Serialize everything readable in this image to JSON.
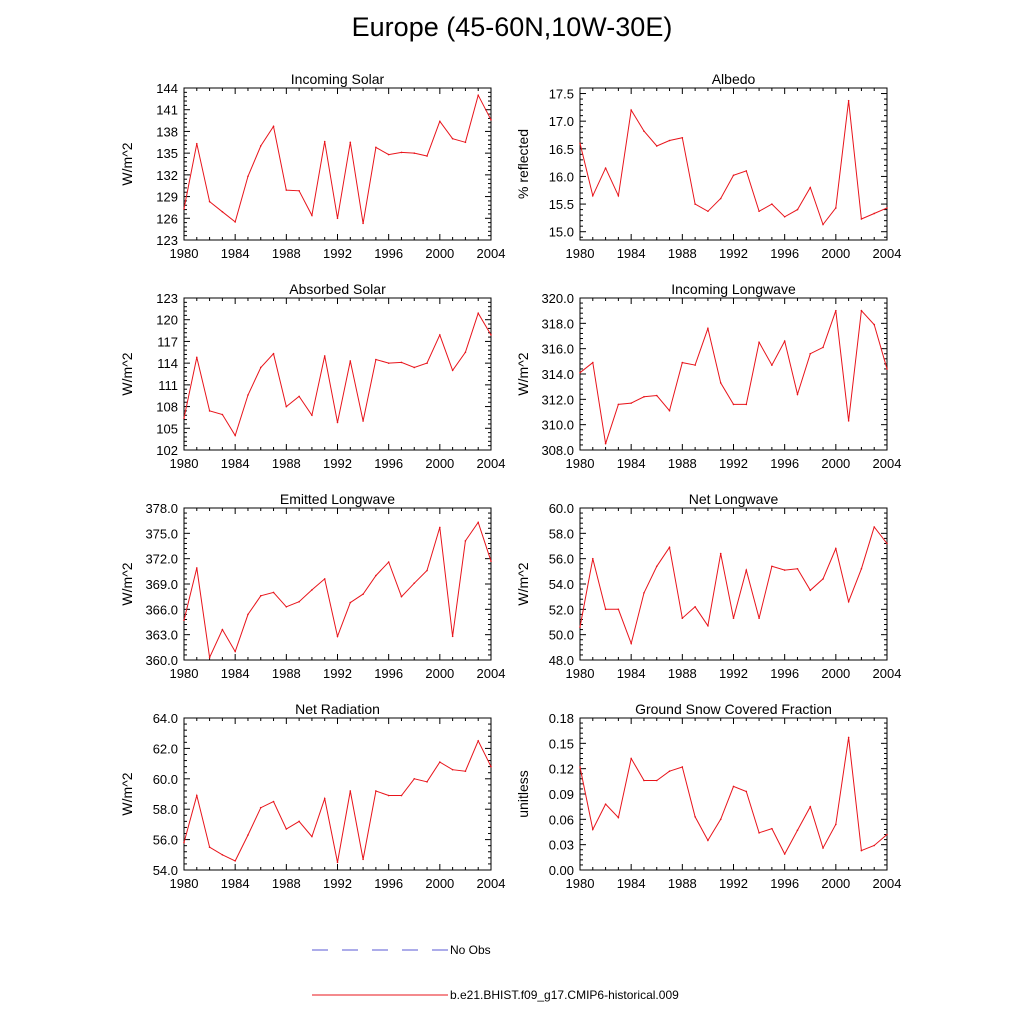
{
  "title": "Europe (45-60N,10W-30E)",
  "colors": {
    "model": "#e8141b",
    "obs": "#5a5ad6",
    "axis": "#000000"
  },
  "legend": {
    "obs_label": "No Obs",
    "model_label": "b.e21.BHIST.f09_g17.CMIP6-historical.009"
  },
  "chart_data": [
    {
      "type": "line",
      "title": "Incoming Solar",
      "xlabel": "",
      "ylabel": "W/m^2",
      "xlim": [
        1980,
        2004
      ],
      "ylim": [
        123,
        144
      ],
      "xticks": [
        "1980",
        "1984",
        "1988",
        "1992",
        "1996",
        "2000",
        "2004"
      ],
      "yticks": [
        "123",
        "126",
        "129",
        "132",
        "135",
        "138",
        "141",
        "144"
      ],
      "x": [
        1980,
        1981,
        1982,
        1983,
        1984,
        1985,
        1986,
        1987,
        1988,
        1989,
        1990,
        1991,
        1992,
        1993,
        1994,
        1995,
        1996,
        1997,
        1998,
        1999,
        2000,
        2001,
        2002,
        2003,
        2004
      ],
      "values": [
        127.3,
        136.3,
        128.3,
        126.9,
        125.5,
        131.8,
        136.0,
        138.7,
        129.9,
        129.8,
        126.4,
        136.6,
        126.0,
        136.5,
        125.3,
        135.8,
        134.8,
        135.1,
        135.0,
        134.6,
        139.4,
        137.0,
        136.5,
        143.0,
        139.6
      ]
    },
    {
      "type": "line",
      "title": "Albedo",
      "xlabel": "",
      "ylabel": "% reflected",
      "xlim": [
        1980,
        2004
      ],
      "ylim": [
        14.85,
        17.6
      ],
      "xticks": [
        "1980",
        "1984",
        "1988",
        "1992",
        "1996",
        "2000",
        "2004"
      ],
      "yticks": [
        "15.0",
        "15.5",
        "16.0",
        "16.5",
        "17.0",
        "17.5"
      ],
      "x": [
        1980,
        1981,
        1982,
        1983,
        1984,
        1985,
        1986,
        1987,
        1988,
        1989,
        1990,
        1991,
        1992,
        1993,
        1994,
        1995,
        1996,
        1997,
        1998,
        1999,
        2000,
        2001,
        2002,
        2003,
        2004
      ],
      "values": [
        16.6,
        15.65,
        16.15,
        15.65,
        17.2,
        16.82,
        16.55,
        16.65,
        16.7,
        15.5,
        15.37,
        15.6,
        16.02,
        16.1,
        15.37,
        15.5,
        15.27,
        15.4,
        15.8,
        15.13,
        15.43,
        17.37,
        15.23,
        15.33,
        15.43
      ]
    },
    {
      "type": "line",
      "title": "Absorbed Solar",
      "xlabel": "",
      "ylabel": "W/m^2",
      "xlim": [
        1980,
        2004
      ],
      "ylim": [
        102,
        123
      ],
      "xticks": [
        "1980",
        "1984",
        "1988",
        "1992",
        "1996",
        "2000",
        "2004"
      ],
      "yticks": [
        "102",
        "105",
        "108",
        "111",
        "114",
        "117",
        "120",
        "123"
      ],
      "x": [
        1980,
        1981,
        1982,
        1983,
        1984,
        1985,
        1986,
        1987,
        1988,
        1989,
        1990,
        1991,
        1992,
        1993,
        1994,
        1995,
        1996,
        1997,
        1998,
        1999,
        2000,
        2001,
        2002,
        2003,
        2004
      ],
      "values": [
        106.4,
        114.8,
        107.4,
        106.9,
        104.0,
        109.6,
        113.4,
        115.3,
        108.0,
        109.4,
        106.8,
        115.0,
        105.8,
        114.3,
        106.0,
        114.5,
        114.0,
        114.1,
        113.4,
        114.0,
        117.9,
        113.0,
        115.5,
        120.9,
        117.9
      ]
    },
    {
      "type": "line",
      "title": "Incoming Longwave",
      "xlabel": "",
      "ylabel": "W/m^2",
      "xlim": [
        1980,
        2004
      ],
      "ylim": [
        308.0,
        320.0
      ],
      "xticks": [
        "1980",
        "1984",
        "1988",
        "1992",
        "1996",
        "2000",
        "2004"
      ],
      "yticks": [
        "308.0",
        "310.0",
        "312.0",
        "314.0",
        "316.0",
        "318.0",
        "320.0"
      ],
      "x": [
        1980,
        1981,
        1982,
        1983,
        1984,
        1985,
        1986,
        1987,
        1988,
        1989,
        1990,
        1991,
        1992,
        1993,
        1994,
        1995,
        1996,
        1997,
        1998,
        1999,
        2000,
        2001,
        2002,
        2003,
        2004
      ],
      "values": [
        314.1,
        314.9,
        308.5,
        311.6,
        311.7,
        312.2,
        312.3,
        311.1,
        314.9,
        314.7,
        317.6,
        313.3,
        311.6,
        311.6,
        316.5,
        314.7,
        316.6,
        312.4,
        315.6,
        316.1,
        319.0,
        310.3,
        319.0,
        317.9,
        314.4
      ]
    },
    {
      "type": "line",
      "title": "Emitted Longwave",
      "xlabel": "",
      "ylabel": "W/m^2",
      "xlim": [
        1980,
        2004
      ],
      "ylim": [
        360.0,
        378.0
      ],
      "xticks": [
        "1980",
        "1984",
        "1988",
        "1992",
        "1996",
        "2000",
        "2004"
      ],
      "yticks": [
        "360.0",
        "363.0",
        "366.0",
        "369.0",
        "372.0",
        "375.0",
        "378.0"
      ],
      "x": [
        1980,
        1981,
        1982,
        1983,
        1984,
        1985,
        1986,
        1987,
        1988,
        1989,
        1990,
        1991,
        1992,
        1993,
        1994,
        1995,
        1996,
        1997,
        1998,
        1999,
        2000,
        2001,
        2002,
        2003,
        2004
      ],
      "values": [
        364.7,
        370.9,
        360.3,
        363.6,
        361.0,
        365.4,
        367.6,
        368.0,
        366.3,
        366.9,
        368.3,
        369.6,
        362.8,
        366.8,
        367.8,
        370.0,
        371.6,
        367.5,
        369.1,
        370.6,
        375.7,
        362.8,
        374.1,
        376.3,
        371.7
      ]
    },
    {
      "type": "line",
      "title": "Net Longwave",
      "xlabel": "",
      "ylabel": "W/m^2",
      "xlim": [
        1980,
        2004
      ],
      "ylim": [
        48.0,
        60.0
      ],
      "xticks": [
        "1980",
        "1984",
        "1988",
        "1992",
        "1996",
        "2000",
        "2004"
      ],
      "yticks": [
        "48.0",
        "50.0",
        "52.0",
        "54.0",
        "56.0",
        "58.0",
        "60.0"
      ],
      "x": [
        1980,
        1981,
        1982,
        1983,
        1984,
        1985,
        1986,
        1987,
        1988,
        1989,
        1990,
        1991,
        1992,
        1993,
        1994,
        1995,
        1996,
        1997,
        1998,
        1999,
        2000,
        2001,
        2002,
        2003,
        2004
      ],
      "values": [
        50.6,
        56.0,
        52.0,
        52.0,
        49.3,
        53.3,
        55.4,
        56.9,
        51.3,
        52.2,
        50.7,
        56.4,
        51.3,
        55.1,
        51.3,
        55.4,
        55.1,
        55.2,
        53.5,
        54.4,
        56.8,
        52.6,
        55.2,
        58.5,
        57.2
      ]
    },
    {
      "type": "line",
      "title": "Net Radiation",
      "xlabel": "",
      "ylabel": "W/m^2",
      "xlim": [
        1980,
        2004
      ],
      "ylim": [
        54.0,
        64.0
      ],
      "xticks": [
        "1980",
        "1984",
        "1988",
        "1992",
        "1996",
        "2000",
        "2004"
      ],
      "yticks": [
        "54.0",
        "56.0",
        "58.0",
        "60.0",
        "62.0",
        "64.0"
      ],
      "x": [
        1980,
        1981,
        1982,
        1983,
        1984,
        1985,
        1986,
        1987,
        1988,
        1989,
        1990,
        1991,
        1992,
        1993,
        1994,
        1995,
        1996,
        1997,
        1998,
        1999,
        2000,
        2001,
        2002,
        2003,
        2004
      ],
      "values": [
        55.8,
        58.9,
        55.5,
        55.0,
        54.6,
        56.3,
        58.1,
        58.5,
        56.7,
        57.2,
        56.2,
        58.7,
        54.5,
        59.2,
        54.7,
        59.2,
        58.9,
        58.9,
        60.0,
        59.8,
        61.1,
        60.6,
        60.5,
        62.5,
        60.8
      ]
    },
    {
      "type": "line",
      "title": "Ground Snow Covered Fraction",
      "xlabel": "",
      "ylabel": "unitless",
      "xlim": [
        1980,
        2004
      ],
      "ylim": [
        0.0,
        0.18
      ],
      "xticks": [
        "1980",
        "1984",
        "1988",
        "1992",
        "1996",
        "2000",
        "2004"
      ],
      "yticks": [
        "0.00",
        "0.03",
        "0.06",
        "0.09",
        "0.12",
        "0.15",
        "0.18"
      ],
      "x": [
        1980,
        1981,
        1982,
        1983,
        1984,
        1985,
        1986,
        1987,
        1988,
        1989,
        1990,
        1991,
        1992,
        1993,
        1994,
        1995,
        1996,
        1997,
        1998,
        1999,
        2000,
        2001,
        2002,
        2003,
        2004
      ],
      "values": [
        0.122,
        0.048,
        0.078,
        0.062,
        0.132,
        0.106,
        0.106,
        0.117,
        0.122,
        0.063,
        0.035,
        0.06,
        0.099,
        0.093,
        0.044,
        0.049,
        0.019,
        0.047,
        0.075,
        0.026,
        0.054,
        0.157,
        0.023,
        0.029,
        0.042
      ]
    }
  ]
}
